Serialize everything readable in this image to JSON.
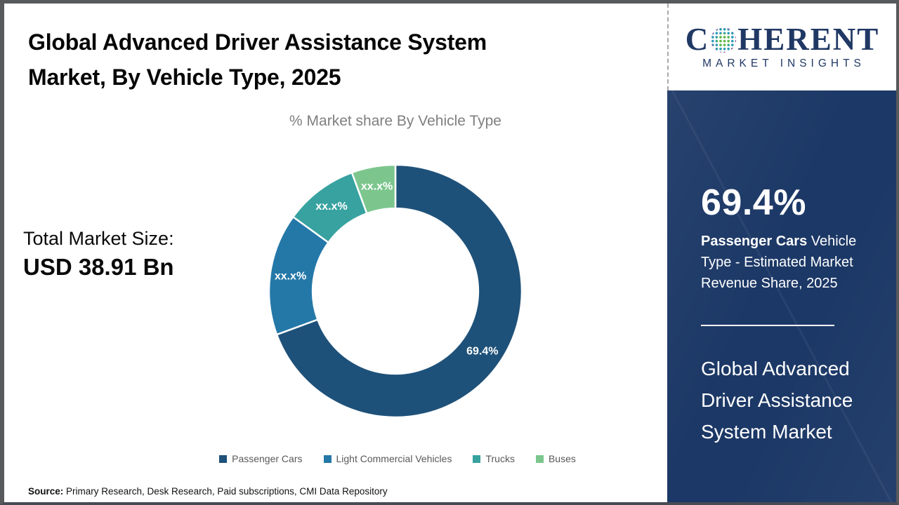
{
  "header": {
    "title_line1": "Global Advanced Driver Assistance System",
    "title_line2": "Market, By Vehicle Type, 2025"
  },
  "brand": {
    "name_first": "C",
    "name_rest": "HERENT",
    "tagline": "MARKET INSIGHTS",
    "navy": "#203864"
  },
  "total_market": {
    "label": "Total Market Size:",
    "value": "USD 38.91 Bn"
  },
  "source": {
    "label": "Source:",
    "text": " Primary Research, Desk Research, Paid subscriptions, CMI Data Repository"
  },
  "sidebar": {
    "stat_value": "69.4%",
    "stat_desc_bold": "Passenger Cars",
    "stat_desc_rest": " Vehicle Type - Estimated Market Revenue Share, 2025",
    "title": "Global Advanced Driver Assistance System Market",
    "bg_color": "#1c3866"
  },
  "chart_data": {
    "type": "pie",
    "subtype": "donut",
    "title": "% Market share By Vehicle Type",
    "legend_position": "bottom",
    "start_angle_deg": 0,
    "direction": "clockwise",
    "inner_radius_ratio": 0.655,
    "segments": [
      {
        "name": "Passenger Cars",
        "value": 69.4,
        "display": "69.4%",
        "color": "#1e5179"
      },
      {
        "name": "Light Commercial Vehicles",
        "value": 15.6,
        "display": "xx.x%",
        "color": "#2478a8"
      },
      {
        "name": "Trucks",
        "value": 9.4,
        "display": "xx.x%",
        "color": "#38a2a0"
      },
      {
        "name": "Buses",
        "value": 5.6,
        "display": "xx.x%",
        "color": "#7cc68e"
      }
    ]
  }
}
